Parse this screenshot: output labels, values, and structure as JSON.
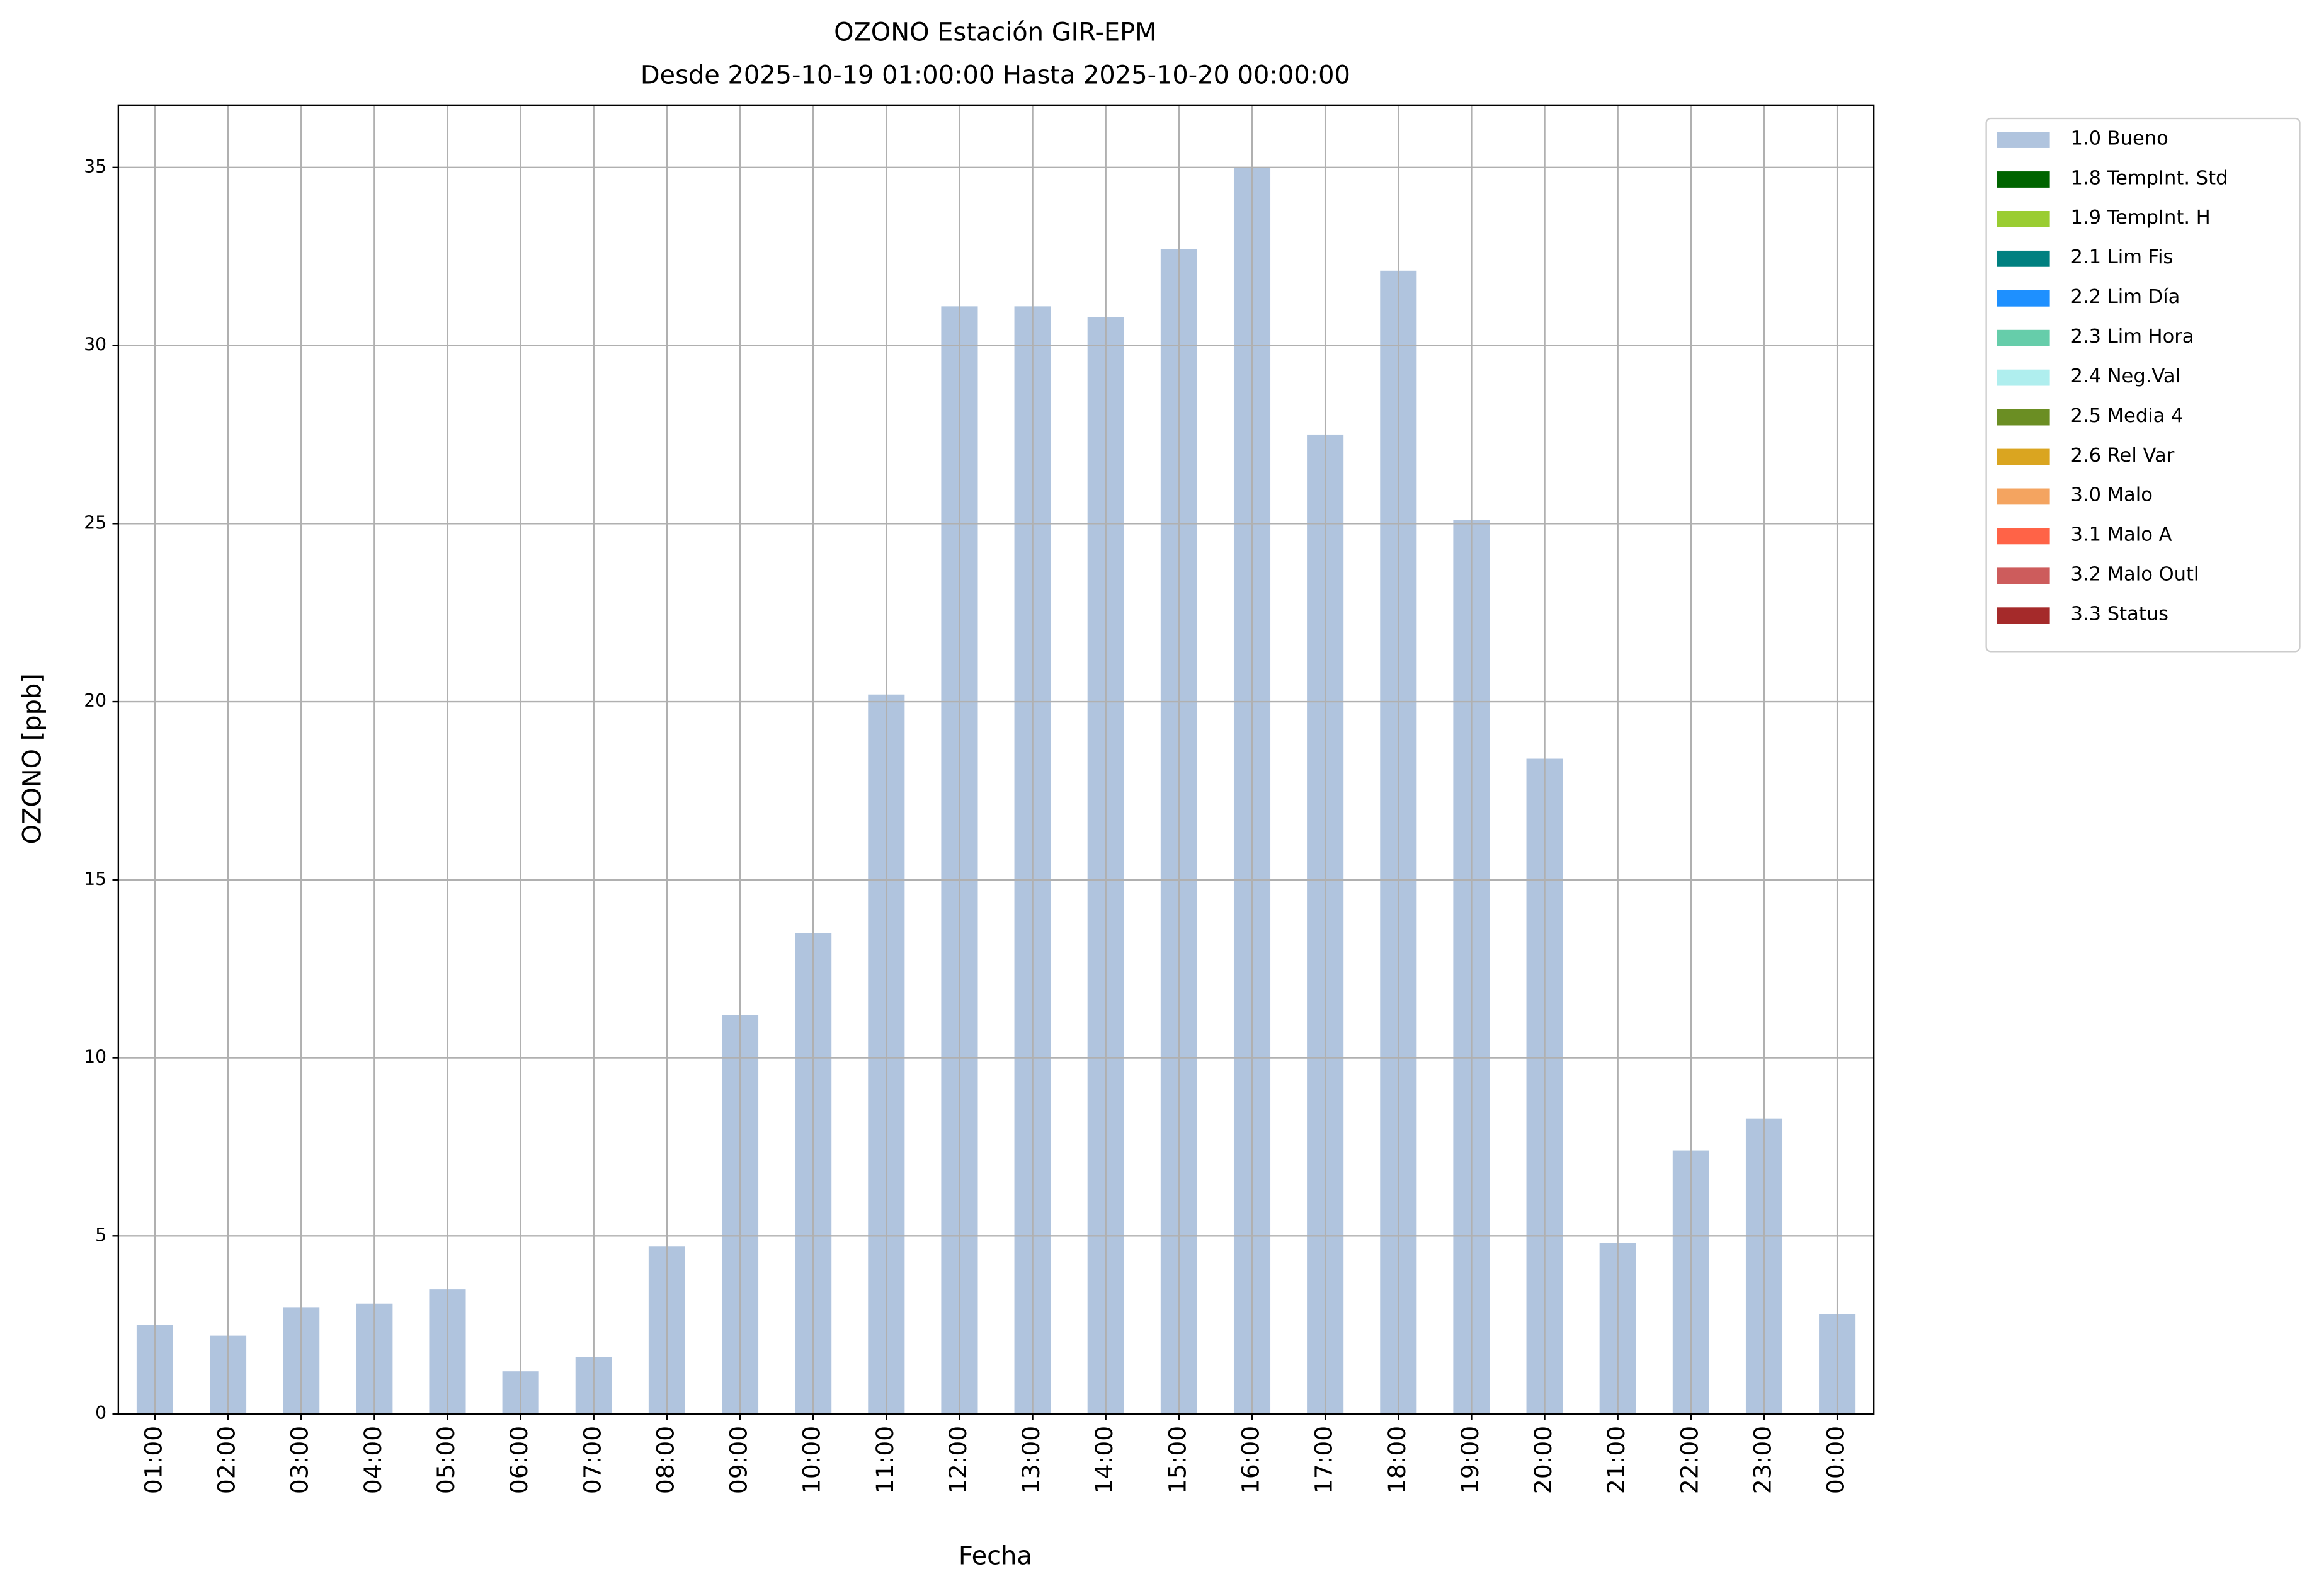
{
  "chart_data": {
    "type": "bar",
    "title": "OZONO Estación GIR-EPM",
    "subtitle": "Desde 2025-10-19 01:00:00 Hasta 2025-10-20 00:00:00",
    "x_label": "Fecha",
    "y_label": "OZONO [ppb]",
    "categories": [
      "01:00",
      "02:00",
      "03:00",
      "04:00",
      "05:00",
      "06:00",
      "07:00",
      "08:00",
      "09:00",
      "10:00",
      "11:00",
      "12:00",
      "13:00",
      "14:00",
      "15:00",
      "16:00",
      "17:00",
      "18:00",
      "19:00",
      "20:00",
      "21:00",
      "22:00",
      "23:00",
      "00:00"
    ],
    "series": [
      {
        "name": "1.0 Bueno",
        "color": "#b0c4de",
        "values": [
          2.5,
          2.2,
          3.0,
          3.1,
          3.5,
          1.2,
          1.6,
          4.7,
          11.2,
          13.5,
          20.2,
          31.1,
          31.1,
          30.8,
          32.7,
          35.0,
          27.5,
          32.1,
          25.1,
          18.4,
          4.8,
          7.4,
          8.3,
          2.8
        ]
      }
    ],
    "other_legend_entries": [
      {
        "name": "1.8 TempInt. Std",
        "color": "#006400"
      },
      {
        "name": "1.9 TempInt. H",
        "color": "#9acd32"
      },
      {
        "name": "2.1 Lim Fis",
        "color": "#008080"
      },
      {
        "name": "2.2 Lim Día",
        "color": "#1e90ff"
      },
      {
        "name": "2.3 Lim Hora",
        "color": "#66cdaa"
      },
      {
        "name": "2.4 Neg.Val",
        "color": "#afeeee"
      },
      {
        "name": "2.5 Media 4",
        "color": "#6b8e23"
      },
      {
        "name": "2.6 Rel Var",
        "color": "#daa520"
      },
      {
        "name": "3.0 Malo",
        "color": "#f4a460"
      },
      {
        "name": "3.1 Malo A",
        "color": "#ff6347"
      },
      {
        "name": "3.2 Malo Outl",
        "color": "#cd5c5c"
      },
      {
        "name": "3.3 Status",
        "color": "#a52a2a"
      }
    ],
    "ylim": [
      0,
      36.75
    ],
    "yticks": [
      0,
      5,
      10,
      15,
      20,
      25,
      30,
      35
    ],
    "grid": true,
    "legend_position": "outside-upper-right"
  }
}
